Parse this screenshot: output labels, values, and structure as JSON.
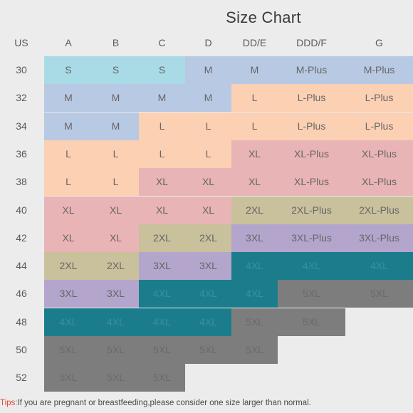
{
  "title": "Size Chart",
  "header_label": "US",
  "columns": [
    "A",
    "B",
    "C",
    "D",
    "DD/E",
    "DDD/F",
    "G"
  ],
  "rows": [
    {
      "us": "30",
      "cells": [
        "S",
        "S",
        "S",
        "M",
        "M",
        "M-Plus",
        "M-Plus"
      ]
    },
    {
      "us": "32",
      "cells": [
        "M",
        "M",
        "M",
        "M",
        "L",
        "L-Plus",
        "L-Plus"
      ]
    },
    {
      "us": "34",
      "cells": [
        "M",
        "M",
        "L",
        "L",
        "L",
        "L-Plus",
        "L-Plus"
      ]
    },
    {
      "us": "36",
      "cells": [
        "L",
        "L",
        "L",
        "L",
        "XL",
        "XL-Plus",
        "XL-Plus"
      ]
    },
    {
      "us": "38",
      "cells": [
        "L",
        "L",
        "XL",
        "XL",
        "XL",
        "XL-Plus",
        "XL-Plus"
      ]
    },
    {
      "us": "40",
      "cells": [
        "XL",
        "XL",
        "XL",
        "XL",
        "2XL",
        "2XL-Plus",
        "2XL-Plus"
      ]
    },
    {
      "us": "42",
      "cells": [
        "XL",
        "XL",
        "2XL",
        "2XL",
        "3XL",
        "3XL-Plus",
        "3XL-Plus"
      ]
    },
    {
      "us": "44",
      "cells": [
        "2XL",
        "2XL",
        "3XL",
        "3XL",
        "4XL",
        "4XL",
        "4XL"
      ]
    },
    {
      "us": "46",
      "cells": [
        "3XL",
        "3XL",
        "4XL",
        "4XL",
        "4XL",
        "5XL",
        "5XL"
      ]
    },
    {
      "us": "48",
      "cells": [
        "4XL",
        "4XL",
        "4XL",
        "4XL",
        "5XL",
        "5XL",
        ""
      ]
    },
    {
      "us": "50",
      "cells": [
        "5XL",
        "5XL",
        "5XL",
        "5XL",
        "5XL",
        "",
        ""
      ]
    },
    {
      "us": "52",
      "cells": [
        "5XL",
        "5XL",
        "5XL",
        "",
        "",
        "",
        ""
      ]
    }
  ],
  "tips": {
    "label": "Tips:",
    "text": "If you are pregnant or breastfeeding,please consider one size larger than normal."
  },
  "colors": {
    "S": "#a8dbe6",
    "M": "#b8c9e3",
    "L": "#fcd0b3",
    "XL": "#e8b4b6",
    "2XL": "#c9c09c",
    "3XL": "#b3a5cc",
    "4XL": "#1b7d8c",
    "5XL": "#7d7d7d",
    "tips_label": "#e04a3a"
  }
}
